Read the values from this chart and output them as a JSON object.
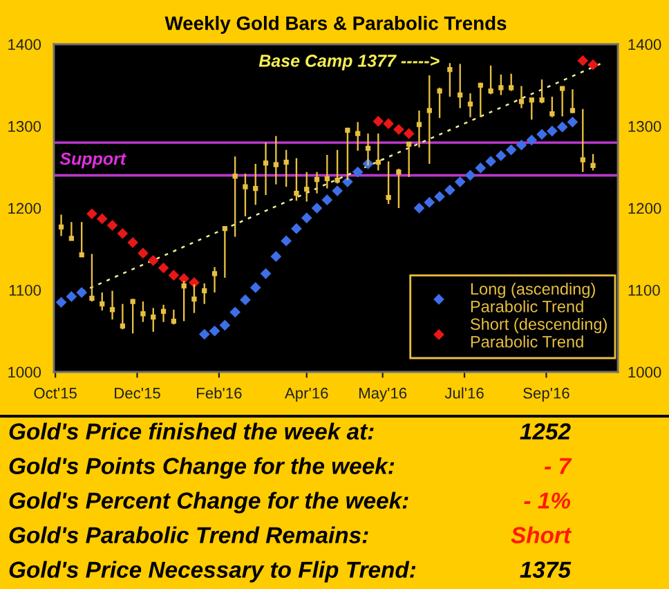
{
  "chart_data": [
    {
      "type": "scatter",
      "title": "Weekly Gold Bars & Parabolic Trends",
      "x": [
        "2015-10-16",
        "2015-10-23",
        "2015-10-30",
        "2015-11-06",
        "2015-11-13",
        "2015-11-20",
        "2015-11-27",
        "2015-12-04",
        "2015-12-11",
        "2015-12-18",
        "2015-12-25",
        "2016-01-01",
        "2016-01-08",
        "2016-01-15",
        "2016-01-22",
        "2016-01-29",
        "2016-02-05",
        "2016-02-12",
        "2016-02-19",
        "2016-02-26",
        "2016-03-04",
        "2016-03-11",
        "2016-03-18",
        "2016-03-25",
        "2016-04-01",
        "2016-04-08",
        "2016-04-15",
        "2016-04-22",
        "2016-04-29",
        "2016-05-06",
        "2016-05-13",
        "2016-05-20",
        "2016-05-27",
        "2016-06-03",
        "2016-06-10",
        "2016-06-17",
        "2016-06-24",
        "2016-07-01",
        "2016-07-08",
        "2016-07-15",
        "2016-07-22",
        "2016-07-29",
        "2016-08-05",
        "2016-08-12",
        "2016-08-19",
        "2016-08-26",
        "2016-09-02",
        "2016-09-09",
        "2016-09-16",
        "2016-09-23",
        "2016-09-30",
        "2016-10-07",
        "2016-10-14"
      ],
      "series": [
        {
          "type": "scatter",
          "color": "#e8c040",
          "marker": "square",
          "values": [
            1177,
            1163,
            1143,
            1090,
            1083,
            1076,
            1056,
            1086,
            1071,
            1067,
            1074,
            1062,
            1105,
            1089,
            1099,
            1120,
            1175,
            1239,
            1226,
            1224,
            1255,
            1253,
            1256,
            1218,
            1223,
            1235,
            1236,
            1234,
            1295,
            1291,
            1273,
            1256,
            1213,
            1244,
            1278,
            1302,
            1319,
            1343,
            1369,
            1338,
            1327,
            1350,
            1343,
            1347,
            1347,
            1330,
            1332,
            1332,
            1315,
            1346,
            1319,
            1259,
            1252
          ],
          "errors": [
            [
              1166,
              1192
            ],
            [
              1161,
              1183
            ],
            [
              1141,
              1183
            ],
            [
              1086,
              1144
            ],
            [
              1075,
              1097
            ],
            [
              1064,
              1099
            ],
            [
              1052,
              1083
            ],
            [
              1047,
              1089
            ],
            [
              1061,
              1086
            ],
            [
              1049,
              1078
            ],
            [
              1061,
              1082
            ],
            [
              1058,
              1076
            ],
            [
              1062,
              1111
            ],
            [
              1072,
              1107
            ],
            [
              1083,
              1108
            ],
            [
              1097,
              1128
            ],
            [
              1115,
              1177
            ],
            [
              1165,
              1263
            ],
            [
              1190,
              1242
            ],
            [
              1204,
              1254
            ],
            [
              1216,
              1280
            ],
            [
              1229,
              1288
            ],
            [
              1226,
              1271
            ],
            [
              1209,
              1261
            ],
            [
              1208,
              1244
            ],
            [
              1218,
              1244
            ],
            [
              1224,
              1265
            ],
            [
              1230,
              1271
            ],
            [
              1234,
              1298
            ],
            [
              1270,
              1305
            ],
            [
              1252,
              1291
            ],
            [
              1246,
              1291
            ],
            [
              1205,
              1257
            ],
            [
              1200,
              1248
            ],
            [
              1238,
              1280
            ],
            [
              1274,
              1319
            ],
            [
              1254,
              1362
            ],
            [
              1310,
              1347
            ],
            [
              1336,
              1377
            ],
            [
              1322,
              1376
            ],
            [
              1311,
              1340
            ],
            [
              1311,
              1353
            ],
            [
              1339,
              1374
            ],
            [
              1338,
              1363
            ],
            [
              1343,
              1364
            ],
            [
              1322,
              1349
            ],
            [
              1308,
              1333
            ],
            [
              1328,
              1357
            ],
            [
              1311,
              1336
            ],
            [
              1312,
              1347
            ],
            [
              1316,
              1345
            ],
            [
              1244,
              1321
            ],
            [
              1246,
              1266
            ]
          ]
        },
        {
          "type": "line",
          "color": "#f2ee98",
          "line_style": "dashed",
          "x": [
            "2015-10-30",
            "2016-10-19"
          ],
          "values": [
            1098,
            1376
          ]
        },
        {
          "type": "scatter",
          "name": "Long (ascending)\nParabolic Trend",
          "color": "#3f6fe8",
          "marker": "diamond",
          "values": [
            1085,
            1092,
            1097,
            null,
            null,
            null,
            null,
            null,
            null,
            null,
            null,
            null,
            null,
            null,
            1046,
            1050,
            1057,
            1073,
            1088,
            1103,
            1120,
            1141,
            1160,
            1175,
            1188,
            1200,
            1210,
            1221,
            1232,
            1244,
            1254,
            null,
            null,
            null,
            null,
            1200,
            1207,
            1214,
            1222,
            1232,
            1240,
            1249,
            1257,
            1264,
            1271,
            1277,
            1283,
            1290,
            1294,
            1299,
            1305,
            null,
            null
          ]
        },
        {
          "type": "scatter",
          "name": "Short (descending)\nParabolic Trend",
          "color": "#e81818",
          "marker": "diamond",
          "values": [
            null,
            null,
            null,
            1193,
            1187,
            1179,
            1169,
            1158,
            1145,
            1136,
            1127,
            1118,
            1114,
            1109,
            null,
            null,
            null,
            null,
            null,
            null,
            null,
            null,
            null,
            null,
            null,
            null,
            null,
            null,
            null,
            null,
            null,
            1306,
            1303,
            1296,
            1291,
            null,
            null,
            null,
            null,
            null,
            null,
            null,
            null,
            null,
            null,
            null,
            null,
            null,
            null,
            null,
            null,
            1380,
            1375
          ]
        }
      ],
      "xlim": [
        "2015-10-11",
        "2016-10-31"
      ],
      "xticks": [
        {
          "value": "2015-10-12",
          "label": "Oct'15"
        },
        {
          "value": "2015-12-07",
          "label": "Dec'15"
        },
        {
          "value": "2016-02-01",
          "label": "Feb'16"
        },
        {
          "value": "2016-04-01",
          "label": "Apr'16"
        },
        {
          "value": "2016-05-23",
          "label": "May'16"
        },
        {
          "value": "2016-07-18",
          "label": "Jul'16"
        },
        {
          "value": "2016-09-12",
          "label": "Sep'16"
        }
      ],
      "ylim": [
        1000,
        1400
      ],
      "yticks": [
        1000,
        1100,
        1200,
        1300,
        1400
      ],
      "y2lim": [
        1000,
        1400
      ],
      "y2ticks": [
        1000,
        1100,
        1200,
        1300,
        1400
      ],
      "ref_lines": [
        {
          "axis": "y",
          "value": 1280,
          "label": "Support",
          "color": "#b838c8"
        },
        {
          "axis": "y",
          "value": 1240,
          "color": "#b838c8"
        }
      ],
      "annotations": [
        "Base Camp 1377 ----->"
      ],
      "legend": "bottom right"
    },
    {
      "type": "other",
      "annotations": [
        "Gold's Price finished the week at:",
        "1252",
        "Gold's Points Change for the week:",
        "- 7",
        "Gold's Percent Change for the week:",
        "- 1%",
        "Gold's Parabolic Trend Remains:",
        "Short",
        "Gold's Price Necessary to Flip Trend:",
        "1375"
      ],
      "colors": [
        "#000000",
        "#000000",
        "#000000",
        "#ff1a00",
        "#000000",
        "#ff1a00",
        "#000000",
        "#ff1a00",
        "#000000",
        "#000000"
      ]
    }
  ]
}
